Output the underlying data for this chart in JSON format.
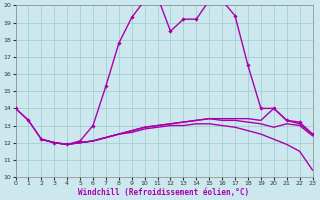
{
  "xlabel": "Windchill (Refroidissement éolien,°C)",
  "xlim": [
    0,
    23
  ],
  "ylim": [
    10,
    20
  ],
  "xticks": [
    0,
    1,
    2,
    3,
    4,
    5,
    6,
    7,
    8,
    9,
    10,
    11,
    12,
    13,
    14,
    15,
    16,
    17,
    18,
    19,
    20,
    21,
    22,
    23
  ],
  "yticks": [
    10,
    11,
    12,
    13,
    14,
    15,
    16,
    17,
    18,
    19,
    20
  ],
  "bg_color": "#cce8ee",
  "line_color": "#aa00aa",
  "grid_color": "#99cccc",
  "main_curve": {
    "x": [
      0,
      1,
      2,
      3,
      4,
      5,
      6,
      7,
      8,
      9,
      10,
      11,
      12,
      13,
      14,
      15,
      16,
      17,
      18,
      19,
      20,
      21,
      22,
      23
    ],
    "y": [
      14.0,
      13.3,
      12.2,
      12.0,
      11.9,
      12.1,
      13.0,
      15.3,
      17.8,
      19.3,
      20.3,
      20.5,
      18.5,
      19.2,
      19.2,
      20.3,
      20.3,
      19.4,
      16.5,
      14.0,
      14.0,
      13.3,
      13.2,
      12.5
    ]
  },
  "line1": {
    "x": [
      0,
      1,
      2,
      3,
      4,
      5,
      6,
      7,
      8,
      9,
      10,
      11,
      12,
      13,
      14,
      15,
      16,
      17,
      18,
      19,
      20,
      21,
      22,
      23
    ],
    "y": [
      14.0,
      13.3,
      12.2,
      12.0,
      11.9,
      12.0,
      12.1,
      12.3,
      12.5,
      12.7,
      12.9,
      13.0,
      13.1,
      13.2,
      13.3,
      13.4,
      13.4,
      13.4,
      13.4,
      13.3,
      14.0,
      13.3,
      13.1,
      12.5
    ]
  },
  "line2": {
    "x": [
      2,
      3,
      4,
      5,
      6,
      7,
      8,
      9,
      10,
      11,
      12,
      13,
      14,
      15,
      16,
      17,
      18,
      19,
      20,
      21,
      22,
      23
    ],
    "y": [
      12.2,
      12.0,
      11.9,
      12.0,
      12.1,
      12.3,
      12.5,
      12.7,
      12.9,
      13.0,
      13.1,
      13.2,
      13.3,
      13.4,
      13.3,
      13.3,
      13.2,
      13.1,
      12.9,
      13.1,
      13.0,
      12.4
    ]
  },
  "line3": {
    "x": [
      2,
      3,
      4,
      5,
      6,
      7,
      8,
      9,
      10,
      11,
      12,
      13,
      14,
      15,
      16,
      17,
      18,
      19,
      20,
      21,
      22,
      23
    ],
    "y": [
      12.2,
      12.0,
      11.9,
      12.0,
      12.1,
      12.3,
      12.5,
      12.6,
      12.8,
      12.9,
      13.0,
      13.0,
      13.1,
      13.1,
      13.0,
      12.9,
      12.7,
      12.5,
      12.2,
      11.9,
      11.5,
      10.4
    ]
  }
}
